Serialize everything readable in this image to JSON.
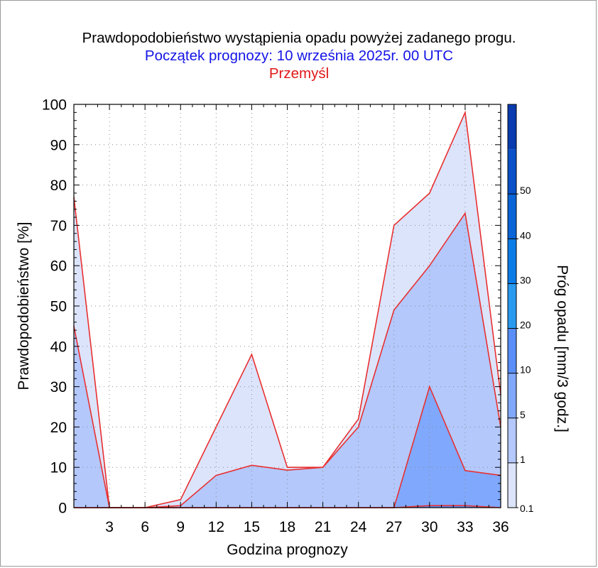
{
  "header": {
    "title": "Prawdopodobieństwo wystąpienia opadu powyżej zadanego progu.",
    "subtitle": "Początek prognozy: 10 września 2025r. 00 UTC",
    "location": "Przemyśl"
  },
  "chart_data": {
    "type": "area",
    "xlabel": "Godzina prognozy",
    "ylabel": "Prawdopodobieństwo [%]",
    "xlim": [
      0,
      36
    ],
    "ylim": [
      0,
      100
    ],
    "x_ticks": [
      3,
      6,
      9,
      12,
      15,
      18,
      21,
      24,
      27,
      30,
      33,
      36
    ],
    "y_ticks": [
      0,
      10,
      20,
      30,
      40,
      50,
      60,
      70,
      80,
      90,
      100
    ],
    "grid": true,
    "x": [
      0,
      3,
      6,
      9,
      12,
      15,
      18,
      21,
      24,
      27,
      30,
      33,
      36
    ],
    "series": [
      {
        "threshold": "0.1",
        "color": "#dce4fc",
        "values": [
          77,
          0,
          0,
          2,
          20,
          38,
          10,
          10,
          22,
          70,
          78,
          98,
          28
        ]
      },
      {
        "threshold": "1",
        "color": "#b4c8fc",
        "values": [
          45,
          0,
          0,
          0.5,
          8,
          10.5,
          9.3,
          10,
          20,
          49,
          60,
          73,
          20
        ]
      },
      {
        "threshold": "5",
        "color": "#80a8fc",
        "values": [
          0,
          0,
          0,
          0,
          0,
          0,
          0,
          0,
          0,
          0,
          30,
          9.2,
          8
        ]
      },
      {
        "threshold": "10",
        "color": "#5a8ef8",
        "values": [
          0,
          0,
          0,
          0,
          0,
          0,
          0,
          0,
          0,
          0,
          0.5,
          0.5,
          0
        ]
      }
    ],
    "line_color": "#e83030",
    "colorbar": {
      "label": "Próg opadu [mm/3 godz.]",
      "labels": [
        "0.1",
        "1",
        "5",
        "10",
        "20",
        "30",
        "40",
        "50"
      ],
      "segments": [
        "#dce4fc",
        "#b4c8fc",
        "#80a8fc",
        "#5a8ef8",
        "#2a9af0",
        "#0a7ce8",
        "#0a64d8",
        "#0a50c8",
        "#0a3cb0"
      ]
    }
  }
}
